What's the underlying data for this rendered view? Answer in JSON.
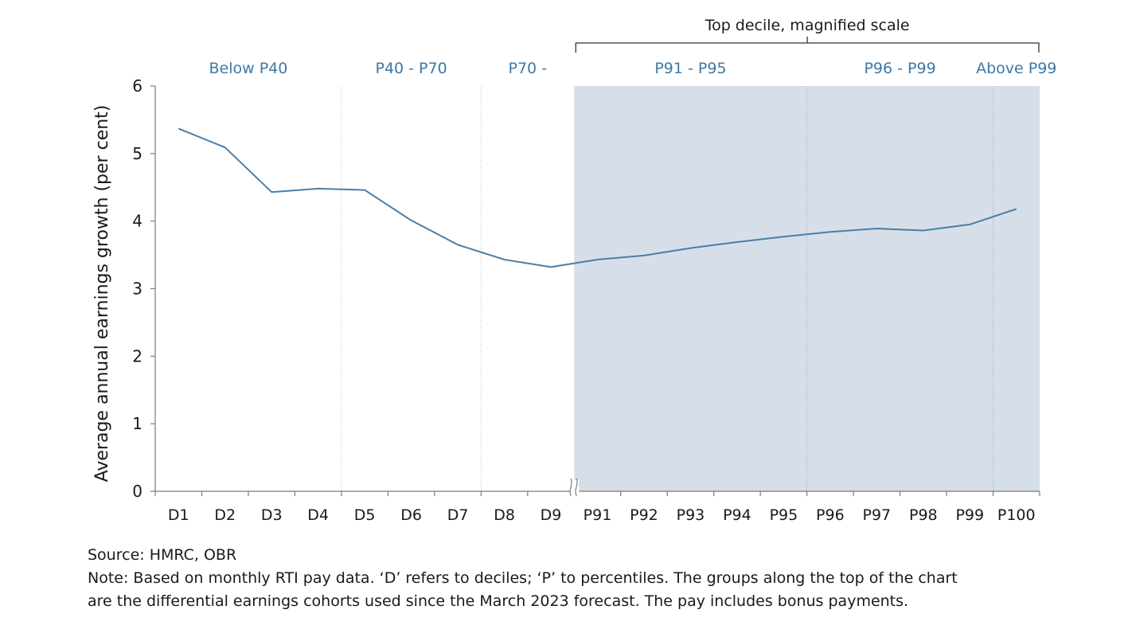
{
  "chart_data": {
    "type": "line",
    "categories": [
      "D1",
      "D2",
      "D3",
      "D4",
      "D5",
      "D6",
      "D7",
      "D8",
      "D9",
      "P91",
      "P92",
      "P93",
      "P94",
      "P95",
      "P96",
      "P97",
      "P98",
      "P99",
      "P100"
    ],
    "values": [
      5.37,
      5.09,
      4.43,
      4.48,
      4.46,
      4.01,
      3.65,
      3.43,
      3.32,
      3.43,
      3.49,
      3.6,
      3.69,
      3.77,
      3.84,
      3.89,
      3.86,
      3.95,
      4.18
    ],
    "ylabel": "Average annual earnings growth (per cent)",
    "xlabel": "",
    "ylim": [
      0,
      6
    ],
    "yticks": [
      "0",
      "1",
      "2",
      "3",
      "4",
      "5",
      "6"
    ],
    "line_color": "#4a7ea8",
    "shade_color": "#d6dfe8",
    "label_color": "#3d79a5",
    "bracket_label": "Top decile, magnified scale",
    "groups": [
      {
        "label": "Below P40",
        "from": 0.5,
        "to": 4.5
      },
      {
        "label": "P40 - P70",
        "from": 4.5,
        "to": 7.5
      },
      {
        "label": "P70 -",
        "from": 7.5,
        "to": 9.5
      },
      {
        "label": "P91 - P95",
        "from": 9.5,
        "to": 14.5
      },
      {
        "label": "P96 - P99",
        "from": 14.5,
        "to": 18.5
      },
      {
        "label": "Above P99",
        "from": 18.5,
        "to": 19.5
      }
    ],
    "shaded_from": 9.5,
    "grid": false,
    "legend": "none"
  },
  "footer": {
    "source": "Source: HMRC, OBR",
    "note_line1": "Note: Based on monthly RTI pay data. ‘D’ refers to deciles; ‘P’ to percentiles. The groups along the top of the chart",
    "note_line2": "are the differential earnings cohorts used since the March 2023 forecast. The pay includes bonus payments."
  }
}
